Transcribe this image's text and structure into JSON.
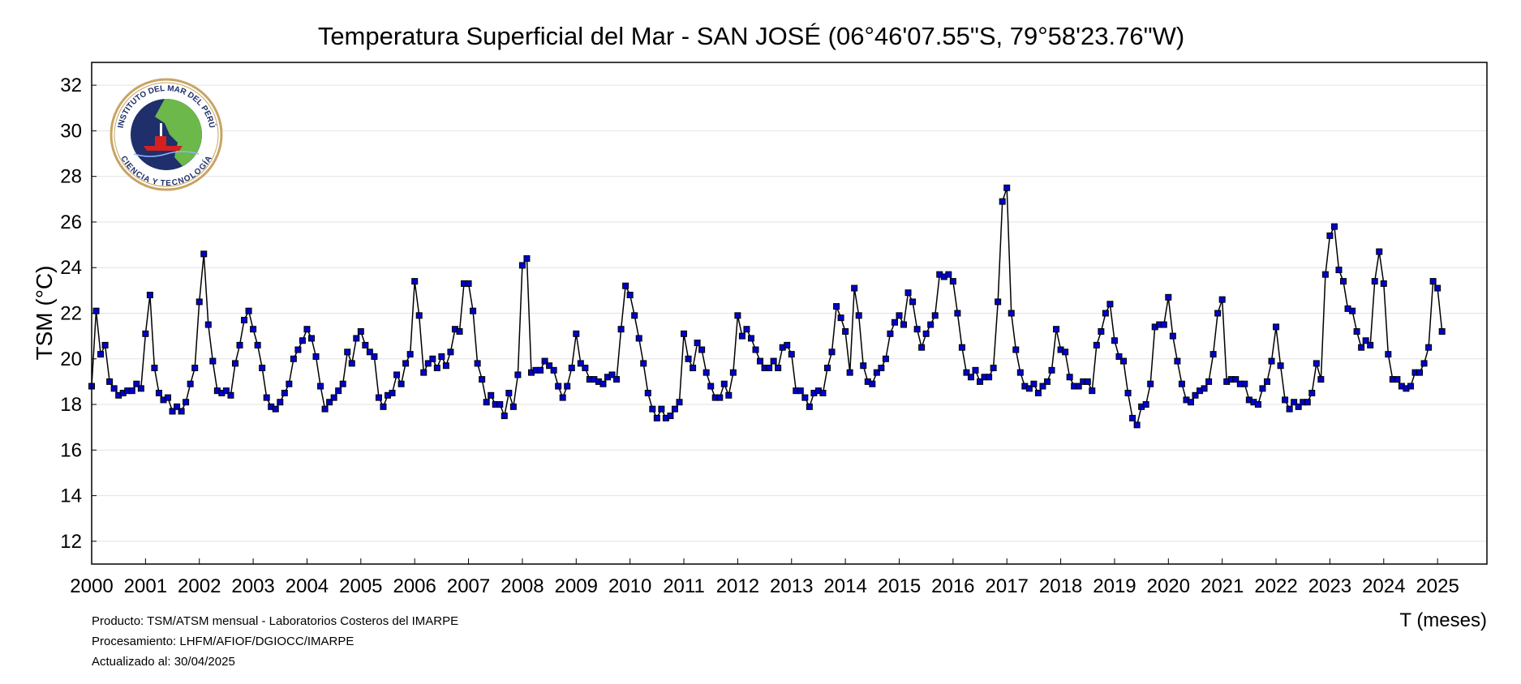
{
  "chart_data": {
    "type": "line",
    "title": "Temperatura Superficial del Mar - SAN JOSÉ (06°46'07.55\"S, 79°58'23.76\"W)",
    "ylabel": "TSM (°C)",
    "xlabel": "T (meses)",
    "xlim": [
      2000,
      2025.917
    ],
    "ylim": [
      11,
      33
    ],
    "yticks": [
      12,
      14,
      16,
      18,
      20,
      22,
      24,
      26,
      28,
      30,
      32
    ],
    "xticks": [
      2000,
      2001,
      2002,
      2003,
      2004,
      2005,
      2006,
      2007,
      2008,
      2009,
      2010,
      2011,
      2012,
      2013,
      2014,
      2015,
      2016,
      2017,
      2018,
      2019,
      2020,
      2021,
      2022,
      2023,
      2024,
      2025
    ],
    "grid": "horizontal",
    "x_start": "2000-01",
    "x_step": "monthly",
    "series": [
      {
        "values": [
          18.8,
          22.1,
          20.2,
          20.6,
          19.0,
          18.7,
          18.4,
          18.5,
          18.6,
          18.6,
          18.9,
          18.7,
          21.1,
          22.8,
          19.6,
          18.5,
          18.2,
          18.3,
          17.7,
          17.9,
          17.7,
          18.1,
          18.9,
          19.6,
          22.5,
          24.6,
          21.5,
          19.9,
          18.6,
          18.5,
          18.6,
          18.4,
          19.8,
          20.6,
          21.7,
          22.1,
          21.3,
          20.6,
          19.6,
          18.3,
          17.9,
          17.8,
          18.1,
          18.5,
          18.9,
          20.0,
          20.4,
          20.8,
          21.3,
          20.9,
          20.1,
          18.8,
          17.8,
          18.1,
          18.3,
          18.6,
          18.9,
          20.3,
          19.8,
          20.9,
          21.2,
          20.6,
          20.3,
          20.1,
          18.3,
          17.9,
          18.4,
          18.5,
          19.3,
          18.9,
          19.8,
          20.2,
          23.4,
          21.9,
          19.4,
          19.8,
          20.0,
          19.6,
          20.1,
          19.7,
          20.3,
          21.3,
          21.2,
          23.3,
          23.3,
          22.1,
          19.8,
          19.1,
          18.1,
          18.4,
          18.0,
          18.0,
          17.5,
          18.5,
          17.9,
          19.3,
          24.1,
          24.4,
          19.4,
          19.5,
          19.5,
          19.9,
          19.7,
          19.5,
          18.8,
          18.3,
          18.8,
          19.6,
          21.1,
          19.8,
          19.6,
          19.1,
          19.1,
          19.0,
          18.9,
          19.2,
          19.3,
          19.1,
          21.3,
          23.2,
          22.8,
          21.9,
          20.9,
          19.8,
          18.5,
          17.8,
          17.4,
          17.8,
          17.4,
          17.5,
          17.8,
          18.1,
          21.1,
          20.0,
          19.6,
          20.7,
          20.4,
          19.4,
          18.8,
          18.3,
          18.3,
          18.9,
          18.4,
          19.4,
          21.9,
          21.0,
          21.3,
          20.9,
          20.4,
          19.9,
          19.6,
          19.6,
          19.9,
          19.6,
          20.5,
          20.6,
          20.2,
          18.6,
          18.6,
          18.3,
          17.9,
          18.5,
          18.6,
          18.5,
          19.6,
          20.3,
          22.3,
          21.8,
          21.2,
          19.4,
          23.1,
          21.9,
          19.7,
          19.0,
          18.9,
          19.4,
          19.6,
          20.0,
          21.1,
          21.6,
          21.9,
          21.5,
          22.9,
          22.5,
          21.3,
          20.5,
          21.1,
          21.5,
          21.9,
          23.7,
          23.6,
          23.7,
          23.4,
          22.0,
          20.5,
          19.4,
          19.2,
          19.5,
          19.0,
          19.2,
          19.2,
          19.6,
          22.5,
          26.9,
          27.5,
          22.0,
          20.4,
          19.4,
          18.8,
          18.7,
          18.9,
          18.5,
          18.8,
          19.0,
          19.5,
          21.3,
          20.4,
          20.3,
          19.2,
          18.8,
          18.8,
          19.0,
          19.0,
          18.6,
          20.6,
          21.2,
          22.0,
          22.4,
          20.8,
          20.1,
          19.9,
          18.5,
          17.4,
          17.1,
          17.9,
          18.0,
          18.9,
          21.4,
          21.5,
          21.5,
          22.7,
          21.0,
          19.9,
          18.9,
          18.2,
          18.1,
          18.4,
          18.6,
          18.7,
          19.0,
          20.2,
          22.0,
          22.6,
          19.0,
          19.1,
          19.1,
          18.9,
          18.9,
          18.2,
          18.1,
          18.0,
          18.7,
          19.0,
          19.9,
          21.4,
          19.7,
          18.2,
          17.8,
          18.1,
          17.9,
          18.1,
          18.1,
          18.5,
          19.8,
          19.1,
          23.7,
          25.4,
          25.8,
          23.9,
          23.4,
          22.2,
          22.1,
          21.2,
          20.5,
          20.8,
          20.6,
          23.4,
          24.7,
          23.3,
          20.2,
          19.1,
          19.1,
          18.8,
          18.7,
          18.8,
          19.4,
          19.4,
          19.8,
          20.5,
          23.4,
          23.1,
          21.2
        ]
      }
    ]
  },
  "logo": {
    "outer_text_top": "INSTITUTO DEL MAR DEL PERÚ",
    "outer_text_bottom": "CIENCIA Y TECNOLOGÍA"
  },
  "footer": {
    "product": "Producto: TSM/ATSM mensual - Laboratorios Costeros del IMARPE",
    "processing": "Procesamiento: LHFM/AFIOF/DGIOCC/IMARPE",
    "updated": "Actualizado al: 30/04/2025"
  },
  "colors": {
    "line": "#000000",
    "marker_fill": "#0000cc",
    "marker_stroke": "#000000",
    "grid": "#e2e2e2",
    "logo_ring": "#c8a463",
    "logo_ocean": "#1f2f6b",
    "logo_land": "#6cb84a"
  }
}
